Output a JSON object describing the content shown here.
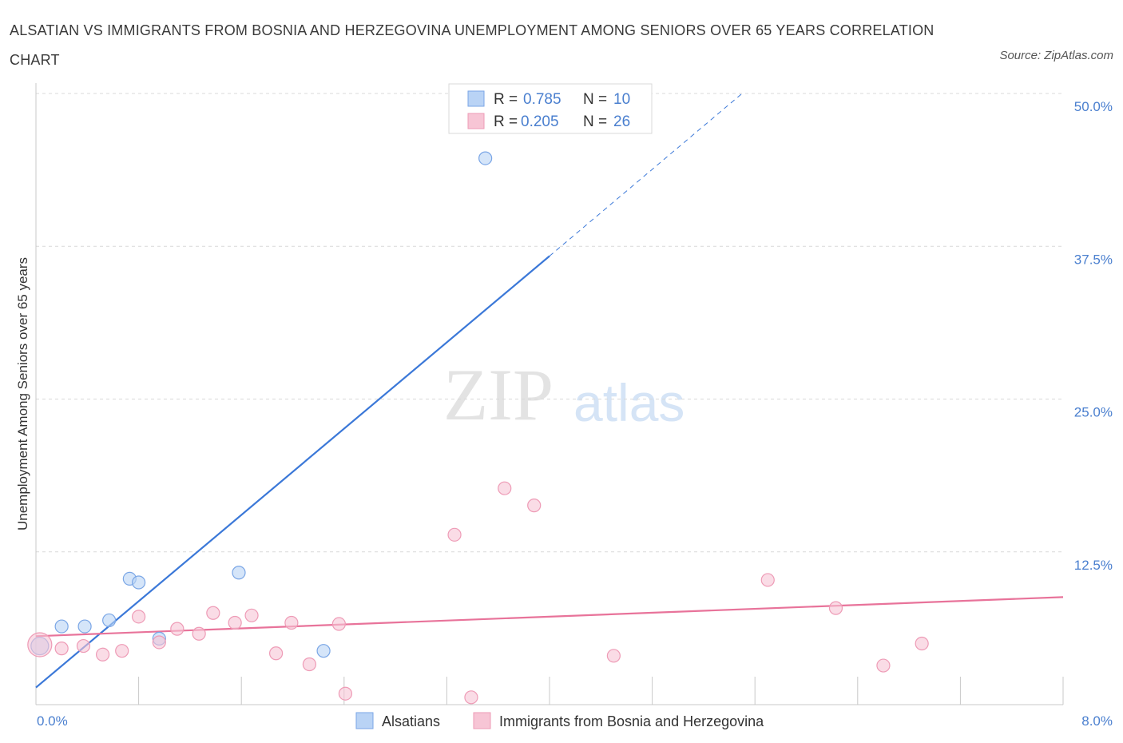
{
  "title": "ALSATIAN VS IMMIGRANTS FROM BOSNIA AND HERZEGOVINA UNEMPLOYMENT AMONG SENIORS OVER 65 YEARS CORRELATION CHART",
  "source": "Source: ZipAtlas.com",
  "watermark": {
    "zip": "ZIP",
    "atlas": "atlas"
  },
  "colors": {
    "blue": "#3b78d8",
    "blue_fill": "#b9d3f5",
    "blue_stroke": "#7aa6e6",
    "pink": "#e8739a",
    "pink_fill": "#f7c5d5",
    "pink_stroke": "#ee9bb6",
    "accent_text": "#4a7fcf",
    "grid": "#d9d9d9"
  },
  "chart_data": {
    "type": "scatter",
    "ylabel": "Unemployment Among Seniors over 65 years",
    "xlim": [
      0,
      8
    ],
    "ylim": [
      0,
      50
    ],
    "x_tick_labels": {
      "min": "0.0%",
      "max": "8.0%"
    },
    "y_ticks": [
      {
        "value": 12.5,
        "label": "12.5%"
      },
      {
        "value": 25,
        "label": "25.0%"
      },
      {
        "value": 37.5,
        "label": "37.5%"
      },
      {
        "value": 50,
        "label": "50.0%"
      }
    ],
    "x_ticks": [
      0,
      0.8,
      1.6,
      2.4,
      3.2,
      4.0,
      4.8,
      5.6,
      6.4,
      7.2,
      8.0
    ],
    "legend": [
      {
        "r_label": "R = ",
        "r_value": "0.785",
        "n_label": "N = ",
        "n_value": "10"
      },
      {
        "r_label": "R = ",
        "r_value": "0.205",
        "n_label": "N = ",
        "n_value": "26"
      }
    ],
    "series": [
      {
        "name": "Alsatians",
        "color": "blue",
        "points": [
          [
            0.03,
            4.8
          ],
          [
            0.2,
            6.4
          ],
          [
            0.38,
            6.4
          ],
          [
            0.57,
            6.9
          ],
          [
            0.73,
            10.3
          ],
          [
            0.8,
            10.0
          ],
          [
            0.96,
            5.4
          ],
          [
            1.58,
            10.8
          ],
          [
            2.24,
            4.4
          ],
          [
            3.5,
            44.7
          ]
        ],
        "trend": {
          "x0": 0,
          "y0": 1.4,
          "x1": 4.0,
          "y1": 36.7,
          "dash_x1": 5.5,
          "dash_y1": 50.0
        }
      },
      {
        "name": "Immigrants from Bosnia and Herzegovina",
        "color": "pink",
        "points": [
          [
            0.03,
            4.9
          ],
          [
            0.2,
            4.6
          ],
          [
            0.37,
            4.8
          ],
          [
            0.52,
            4.1
          ],
          [
            0.67,
            4.4
          ],
          [
            0.8,
            7.2
          ],
          [
            0.96,
            5.1
          ],
          [
            1.1,
            6.2
          ],
          [
            1.27,
            5.8
          ],
          [
            1.38,
            7.5
          ],
          [
            1.55,
            6.7
          ],
          [
            1.68,
            7.3
          ],
          [
            1.87,
            4.2
          ],
          [
            1.99,
            6.7
          ],
          [
            2.13,
            3.3
          ],
          [
            2.36,
            6.6
          ],
          [
            2.41,
            0.9
          ],
          [
            3.26,
            13.9
          ],
          [
            3.39,
            0.6
          ],
          [
            3.65,
            17.7
          ],
          [
            3.88,
            16.3
          ],
          [
            4.5,
            4.0
          ],
          [
            5.7,
            10.2
          ],
          [
            6.23,
            7.9
          ],
          [
            6.6,
            3.2
          ],
          [
            6.9,
            5.0
          ]
        ],
        "trend": {
          "x0": 0,
          "y0": 5.6,
          "x1": 8.0,
          "y1": 8.8
        }
      }
    ]
  }
}
